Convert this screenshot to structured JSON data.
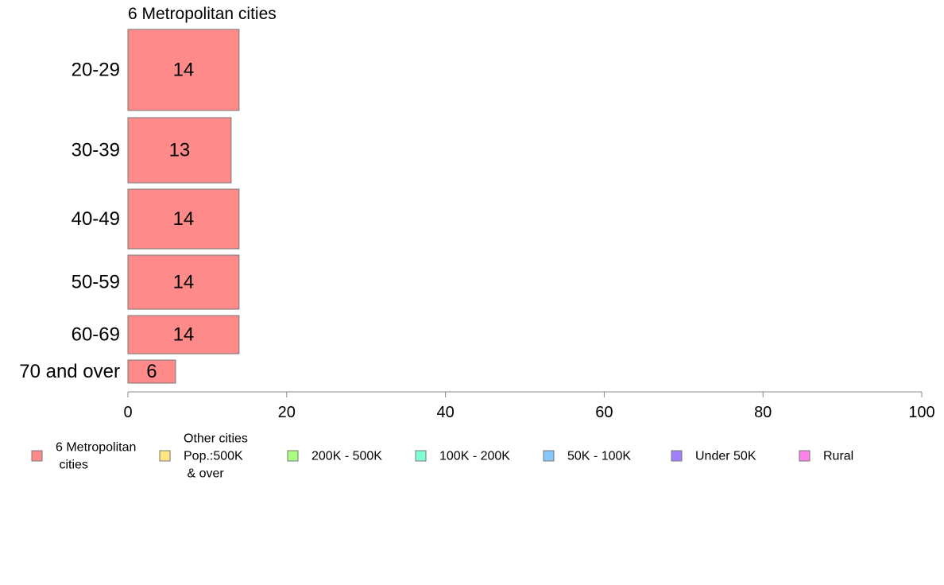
{
  "chart_data": {
    "type": "bar",
    "orientation": "horizontal",
    "title": "6 Metropolitan cities",
    "categories": [
      "20-29",
      "30-39",
      "40-49",
      "50-59",
      "60-69",
      "70 and over"
    ],
    "series": [
      {
        "name": "6 Metropolitan cities",
        "values": [
          14,
          13,
          14,
          14,
          14,
          6
        ],
        "color": "#ff8a8a"
      }
    ],
    "xlim": [
      0,
      100
    ],
    "xticks": [
      0,
      20,
      40,
      60,
      80,
      100
    ],
    "grid": false,
    "legend_position": "bottom",
    "legend": [
      {
        "lines": [
          "6 Metropolitan",
          " cities"
        ],
        "color": "#ff8a8a"
      },
      {
        "lines": [
          "Other cities",
          "Pop.:500K",
          " & over"
        ],
        "color": "#ffe680"
      },
      {
        "lines": [
          "200K - 500K"
        ],
        "color": "#aaff80"
      },
      {
        "lines": [
          "100K - 200K"
        ],
        "color": "#80ffd0"
      },
      {
        "lines": [
          "50K - 100K"
        ],
        "color": "#88c8ff"
      },
      {
        "lines": [
          "Under 50K"
        ],
        "color": "#a080ff"
      },
      {
        "lines": [
          "Rural"
        ],
        "color": "#ff80e8"
      }
    ]
  }
}
